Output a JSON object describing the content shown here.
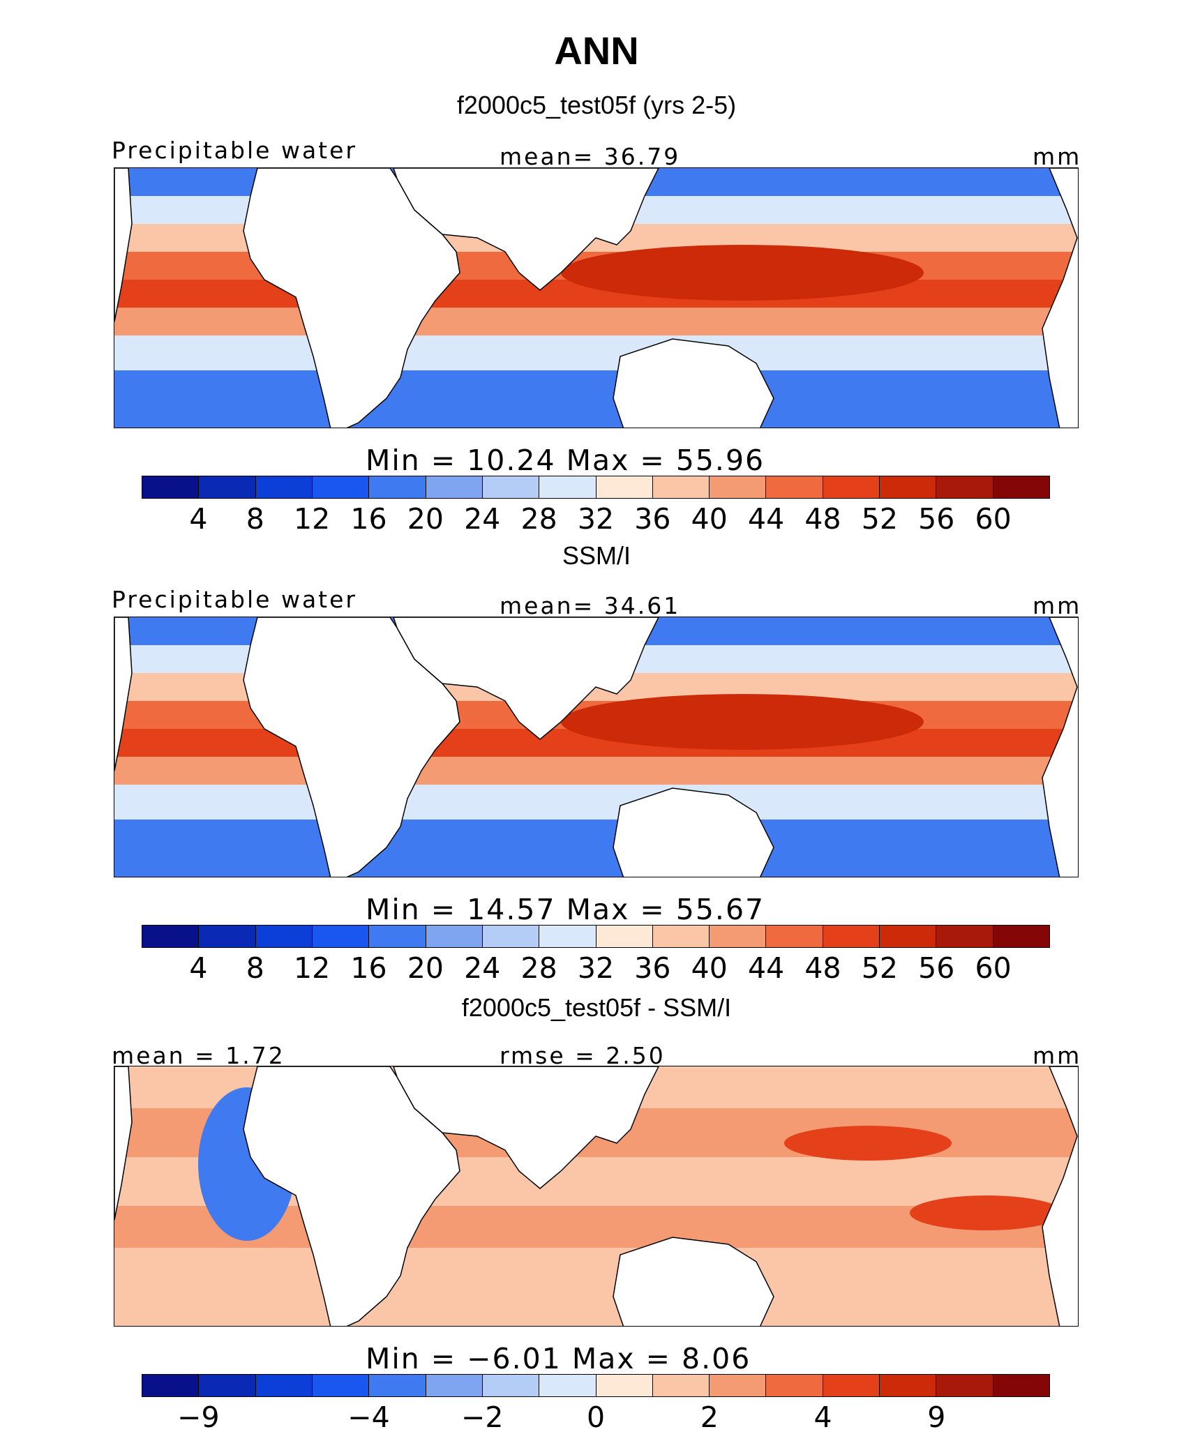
{
  "title": "ANN",
  "panels": [
    {
      "title": "f2000c5_test05f (yrs 2-5)",
      "left_label": "Precipitable water",
      "center_label": "mean=   36.79",
      "right_label": "mm",
      "minmax": "Min  =    10.24  Max  =    55.96",
      "ticks": [
        "4",
        "8",
        "12",
        "16",
        "20",
        "24",
        "28",
        "32",
        "36",
        "40",
        "44",
        "48",
        "52",
        "56",
        "60"
      ]
    },
    {
      "title": "SSM/I",
      "left_label": "Precipitable water",
      "center_label": "mean=   34.61",
      "right_label": "mm",
      "minmax": "Min  =    14.57  Max  =    55.67",
      "ticks": [
        "4",
        "8",
        "12",
        "16",
        "20",
        "24",
        "28",
        "32",
        "36",
        "40",
        "44",
        "48",
        "52",
        "56",
        "60"
      ]
    },
    {
      "title": "f2000c5_test05f - SSM/I",
      "left_label": "mean =    1.72",
      "center_label": "rmse  =    2.50",
      "right_label": "mm",
      "minmax": "Min  =   −6.01  Max  =     8.06",
      "ticks": [
        "−9",
        "−4",
        "−2",
        "0",
        "2",
        "4",
        "9"
      ]
    }
  ],
  "colorbar_colors": [
    "#08108a",
    "#0a2ab5",
    "#0b3fd8",
    "#1a56f0",
    "#3f7af0",
    "#7fa4f0",
    "#b4cdf6",
    "#d9e8fa",
    "#fde9d6",
    "#fbc6a8",
    "#f59b74",
    "#ef6a3f",
    "#e4401a",
    "#cc2a08",
    "#a8190a",
    "#840606"
  ],
  "colors": {
    "blue_dark": "#1a56f0",
    "blue_mid": "#3f7af0",
    "blue_light": "#7fa4f0",
    "blue_pale": "#d9e8fa",
    "orange_pale": "#fbc6a8",
    "orange_mid": "#f59b74",
    "orange": "#ef6a3f",
    "red": "#e4401a",
    "red_dark": "#cc2a08"
  }
}
